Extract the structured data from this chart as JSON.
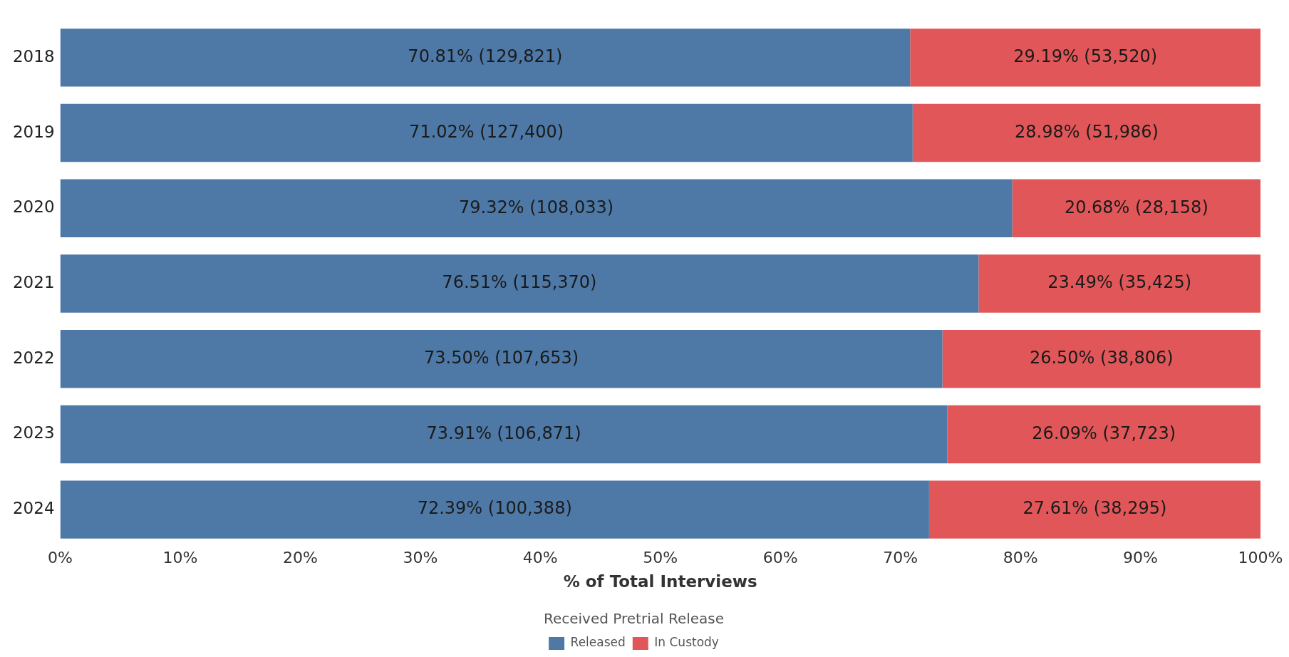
{
  "chart_data": {
    "type": "bar",
    "orientation": "horizontal",
    "stacked": true,
    "xlabel": "% of Total Interviews",
    "legend_title": "Received Pretrial Release",
    "legend": "bottom",
    "categories": [
      "2018",
      "2019",
      "2020",
      "2021",
      "2022",
      "2023",
      "2024"
    ],
    "series": [
      {
        "name": "Released",
        "color": "#4e79a7",
        "values": [
          70.81,
          71.02,
          79.32,
          76.51,
          73.5,
          73.91,
          72.39
        ],
        "value_labels": [
          "70.81% (129,821)",
          "71.02% (127,400)",
          "79.32% (108,033)",
          "76.51% (115,370)",
          "73.50% (107,653)",
          "73.91% (106,871)",
          "72.39% (100,388)"
        ]
      },
      {
        "name": "In Custody",
        "color": "#e15759",
        "values": [
          29.19,
          28.98,
          20.68,
          23.49,
          26.5,
          26.09,
          27.61
        ],
        "value_labels": [
          "29.19% (53,520)",
          "28.98% (51,986)",
          "20.68% (28,158)",
          "23.49% (35,425)",
          "26.50% (38,806)",
          "26.09% (37,723)",
          "27.61% (38,295)"
        ]
      }
    ],
    "xlim": [
      0,
      100
    ],
    "xticks": [
      {
        "value": 0,
        "label": "0%"
      },
      {
        "value": 10,
        "label": "10%"
      },
      {
        "value": 20,
        "label": "20%"
      },
      {
        "value": 30,
        "label": "30%"
      },
      {
        "value": 40,
        "label": "40%"
      },
      {
        "value": 50,
        "label": "50%"
      },
      {
        "value": 60,
        "label": "60%"
      },
      {
        "value": 70,
        "label": "70%"
      },
      {
        "value": 80,
        "label": "80%"
      },
      {
        "value": 90,
        "label": "90%"
      },
      {
        "value": 100,
        "label": "100%"
      }
    ],
    "grid": false
  }
}
